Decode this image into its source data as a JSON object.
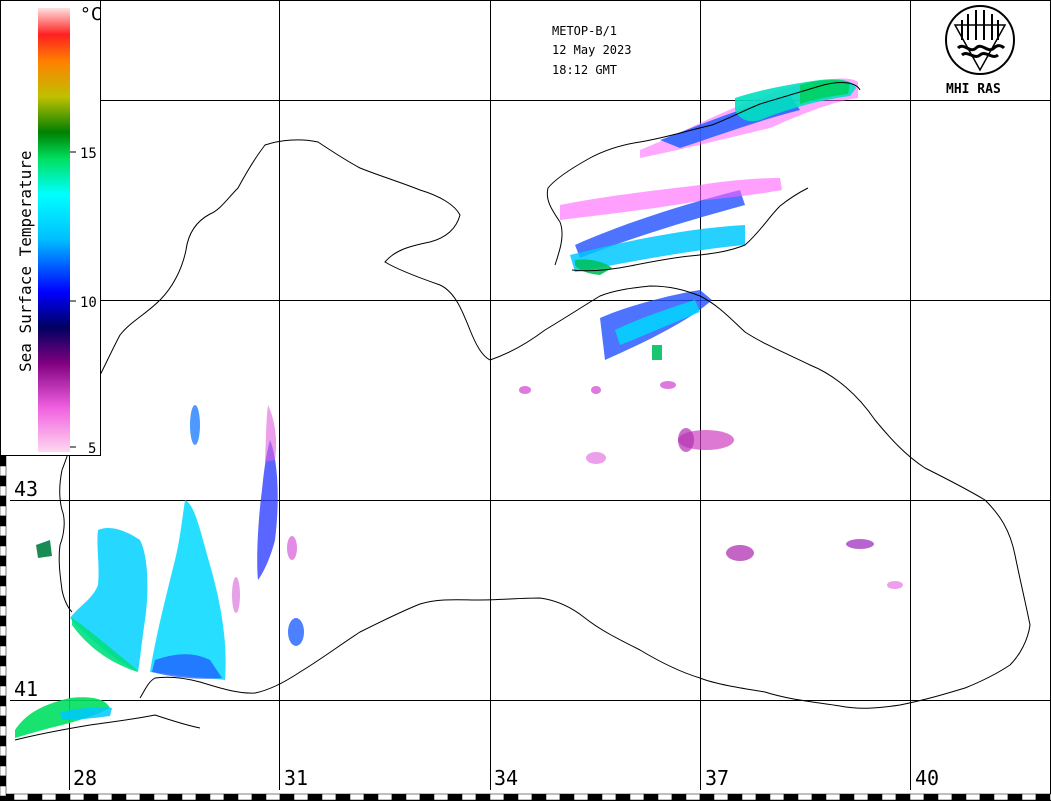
{
  "header": {
    "satellite": "METOP-B/1",
    "date": "12 May 2023",
    "time": "18:12 GMT"
  },
  "logo": {
    "label": "MHI RAS",
    "icon": "mhi-ras-logo-icon"
  },
  "colorbar": {
    "title": "Sea Surface Temperature",
    "unit": "°C",
    "ticks": [
      "15",
      "10",
      "5"
    ],
    "colors": [
      "#ffc0e8",
      "#e040e0",
      "#800080",
      "#000080",
      "#0000ff",
      "#00ffff",
      "#00e060",
      "#008000",
      "#c0c000",
      "#ff8000",
      "#ff0000",
      "#ffc0c0"
    ]
  },
  "grid": {
    "lon_labels": [
      "28",
      "31",
      "34",
      "37",
      "40"
    ],
    "lat_labels": [
      "43",
      "41"
    ]
  },
  "colors": {
    "coast": "#000000",
    "grid": "#000000",
    "cold": "#ff00ff",
    "mid": "#0000ff",
    "warm": "#00e0ff",
    "warmest": "#00e060"
  }
}
